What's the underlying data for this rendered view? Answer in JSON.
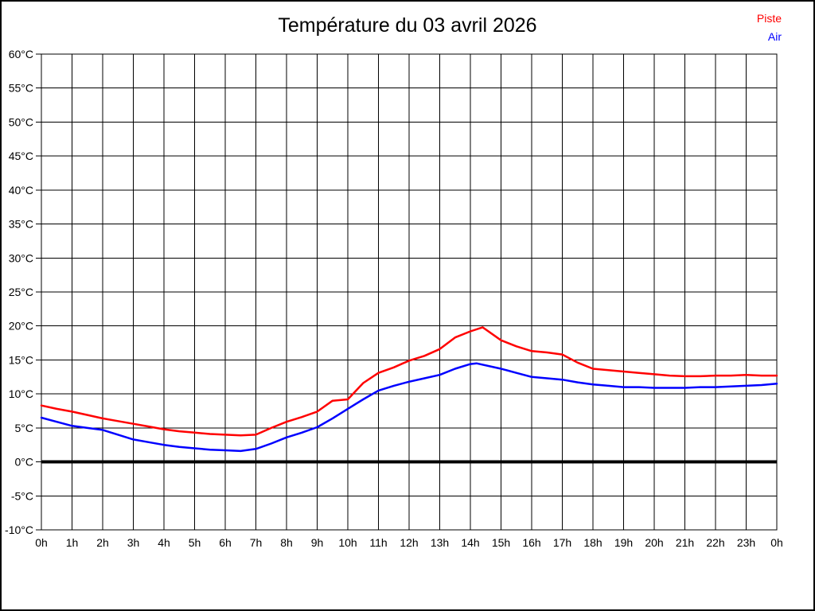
{
  "page": {
    "title": "Température du 03 avril 2026"
  },
  "chart_data": {
    "type": "line",
    "title": "Température du 03 avril 2026",
    "xlabel": "",
    "ylabel": "°C",
    "xlim": [
      0,
      24
    ],
    "ylim": [
      -10,
      60
    ],
    "y_tick_step": 5,
    "y_tick_labels": [
      "60°C",
      "55°C",
      "50°C",
      "45°C",
      "40°C",
      "35°C",
      "30°C",
      "25°C",
      "20°C",
      "15°C",
      "10°C",
      "5°C",
      "0°C",
      "-5°C",
      "-10°C"
    ],
    "x_tick_labels": [
      "0h",
      "1h",
      "2h",
      "3h",
      "4h",
      "5h",
      "6h",
      "7h",
      "8h",
      "9h",
      "10h",
      "11h",
      "12h",
      "13h",
      "14h",
      "15h",
      "16h",
      "17h",
      "18h",
      "19h",
      "20h",
      "21h",
      "22h",
      "23h",
      "0h"
    ],
    "grid": "full-black-grid",
    "zero_line_value": 0,
    "legend": {
      "position": "top-right",
      "items": [
        {
          "label": "Piste",
          "color": "#ff0000"
        },
        {
          "label": "Air",
          "color": "#0000ff"
        }
      ]
    },
    "series": [
      {
        "name": "Piste",
        "color": "#ff0000",
        "points": [
          [
            0,
            8.3
          ],
          [
            0.5,
            7.8
          ],
          [
            1,
            7.4
          ],
          [
            1.5,
            6.9
          ],
          [
            2,
            6.4
          ],
          [
            2.5,
            6.0
          ],
          [
            3,
            5.6
          ],
          [
            3.5,
            5.2
          ],
          [
            4,
            4.8
          ],
          [
            4.5,
            4.5
          ],
          [
            5,
            4.3
          ],
          [
            5.5,
            4.1
          ],
          [
            6,
            4.0
          ],
          [
            6.5,
            3.9
          ],
          [
            7,
            4.0
          ],
          [
            7.5,
            5.0
          ],
          [
            8,
            5.9
          ],
          [
            8.5,
            6.6
          ],
          [
            9,
            7.4
          ],
          [
            9.5,
            9.0
          ],
          [
            10,
            9.2
          ],
          [
            10.5,
            11.6
          ],
          [
            11,
            13.1
          ],
          [
            11.5,
            13.9
          ],
          [
            12,
            14.9
          ],
          [
            12.5,
            15.6
          ],
          [
            13,
            16.6
          ],
          [
            13.5,
            18.3
          ],
          [
            14,
            19.2
          ],
          [
            14.4,
            19.8
          ],
          [
            15,
            17.9
          ],
          [
            15.5,
            17.0
          ],
          [
            16,
            16.3
          ],
          [
            16.5,
            16.1
          ],
          [
            17,
            15.8
          ],
          [
            17.5,
            14.6
          ],
          [
            18,
            13.7
          ],
          [
            18.5,
            13.5
          ],
          [
            19,
            13.3
          ],
          [
            19.5,
            13.1
          ],
          [
            20,
            12.9
          ],
          [
            20.5,
            12.7
          ],
          [
            21,
            12.6
          ],
          [
            21.5,
            12.6
          ],
          [
            22,
            12.7
          ],
          [
            22.5,
            12.7
          ],
          [
            23,
            12.8
          ],
          [
            23.5,
            12.7
          ],
          [
            24,
            12.7
          ]
        ]
      },
      {
        "name": "Air",
        "color": "#0000ff",
        "points": [
          [
            0,
            6.5
          ],
          [
            0.5,
            5.9
          ],
          [
            1,
            5.3
          ],
          [
            1.5,
            5.0
          ],
          [
            2,
            4.7
          ],
          [
            2.5,
            4.0
          ],
          [
            3,
            3.3
          ],
          [
            3.5,
            2.9
          ],
          [
            4,
            2.5
          ],
          [
            4.5,
            2.2
          ],
          [
            5,
            2.0
          ],
          [
            5.5,
            1.8
          ],
          [
            6,
            1.7
          ],
          [
            6.5,
            1.6
          ],
          [
            7,
            1.9
          ],
          [
            7.5,
            2.7
          ],
          [
            8,
            3.6
          ],
          [
            8.5,
            4.3
          ],
          [
            9,
            5.1
          ],
          [
            9.5,
            6.4
          ],
          [
            10,
            7.8
          ],
          [
            10.5,
            9.2
          ],
          [
            11,
            10.5
          ],
          [
            11.5,
            11.2
          ],
          [
            12,
            11.8
          ],
          [
            12.5,
            12.3
          ],
          [
            13,
            12.8
          ],
          [
            13.5,
            13.7
          ],
          [
            14,
            14.4
          ],
          [
            14.2,
            14.5
          ],
          [
            15,
            13.7
          ],
          [
            15.5,
            13.1
          ],
          [
            16,
            12.5
          ],
          [
            16.5,
            12.3
          ],
          [
            17,
            12.1
          ],
          [
            17.5,
            11.7
          ],
          [
            18,
            11.4
          ],
          [
            18.5,
            11.2
          ],
          [
            19,
            11.0
          ],
          [
            19.5,
            11.0
          ],
          [
            20,
            10.9
          ],
          [
            20.5,
            10.9
          ],
          [
            21,
            10.9
          ],
          [
            21.5,
            11.0
          ],
          [
            22,
            11.0
          ],
          [
            22.5,
            11.1
          ],
          [
            23,
            11.2
          ],
          [
            23.5,
            11.3
          ],
          [
            24,
            11.5
          ]
        ]
      }
    ]
  }
}
